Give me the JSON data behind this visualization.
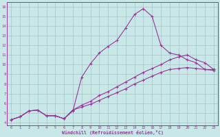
{
  "bg_color": "#c8e8e8",
  "line_color": "#993399",
  "grid_color": "#a0b8c0",
  "xlabel": "Windchill (Refroidissement éolien,°C)",
  "xlim": [
    0,
    23
  ],
  "ylim": [
    4,
    16
  ],
  "xticks": [
    0,
    1,
    2,
    3,
    4,
    5,
    6,
    7,
    8,
    9,
    10,
    11,
    12,
    13,
    14,
    15,
    16,
    17,
    18,
    19,
    20,
    21,
    22,
    23
  ],
  "yticks": [
    4,
    5,
    6,
    7,
    8,
    9,
    10,
    11,
    12,
    13,
    14,
    15,
    16
  ],
  "curve1_x": [
    0,
    1,
    2,
    3,
    4,
    5,
    6,
    7,
    8,
    9,
    10,
    11,
    12,
    13,
    14,
    15,
    16,
    17,
    18,
    19,
    20,
    21,
    22,
    23
  ],
  "curve1_y": [
    4.3,
    4.6,
    5.2,
    5.3,
    4.7,
    4.7,
    4.4,
    5.2,
    8.7,
    10.1,
    11.2,
    11.9,
    12.5,
    13.8,
    15.2,
    15.8,
    15.0,
    12.0,
    11.2,
    11.0,
    10.5,
    10.2,
    9.5,
    9.5
  ],
  "curve2_x": [
    0,
    1,
    2,
    3,
    4,
    5,
    6,
    7,
    8,
    9,
    10,
    11,
    12,
    13,
    14,
    15,
    16,
    17,
    18,
    19,
    20,
    21,
    22,
    23
  ],
  "curve2_y": [
    4.3,
    4.6,
    5.2,
    5.3,
    4.7,
    4.7,
    4.4,
    5.3,
    5.8,
    6.2,
    6.8,
    7.2,
    7.7,
    8.2,
    8.7,
    9.2,
    9.6,
    10.0,
    10.5,
    10.8,
    11.0,
    10.5,
    10.2,
    9.5
  ],
  "curve3_x": [
    0,
    1,
    2,
    3,
    4,
    5,
    6,
    7,
    8,
    9,
    10,
    11,
    12,
    13,
    14,
    15,
    16,
    17,
    18,
    19,
    20,
    21,
    22,
    23
  ],
  "curve3_y": [
    4.3,
    4.6,
    5.2,
    5.3,
    4.7,
    4.7,
    4.4,
    5.3,
    5.6,
    5.9,
    6.3,
    6.7,
    7.1,
    7.5,
    8.0,
    8.4,
    8.8,
    9.2,
    9.5,
    9.6,
    9.7,
    9.6,
    9.5,
    9.4
  ]
}
